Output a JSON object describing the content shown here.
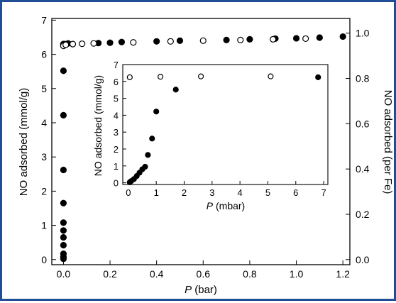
{
  "chart_data": [
    {
      "type": "scatter",
      "title": "",
      "xlabel": "P (bar)",
      "xlabel_var": "P",
      "xlabel_unit": "(bar)",
      "ylabel": "NO adsorbed (mmol/g)",
      "y2label": "NO adsorbed (per Fe)",
      "xlim": [
        -0.05,
        1.23
      ],
      "ylim": [
        -0.15,
        7.05
      ],
      "y2lim": [
        -0.0226,
        1.065
      ],
      "xticks": [
        "0.0",
        "0.2",
        "0.4",
        "0.6",
        "0.8",
        "1.0",
        "1.2"
      ],
      "yticks": [
        "0",
        "1",
        "2",
        "3",
        "4",
        "5",
        "6",
        "7"
      ],
      "y2ticks": [
        "0.0",
        "0.2",
        "0.4",
        "0.6",
        "0.8",
        "1.0"
      ],
      "series": [
        {
          "marker": "filled-circle",
          "color": "#000000",
          "x": [
            0.0,
            0.0,
            0.0,
            0.0,
            0.0,
            0.0,
            0.0,
            0.0,
            0.0,
            0.0,
            0.0,
            0.0,
            0.0,
            0.0,
            0.0,
            0.005,
            0.02,
            0.15,
            0.2,
            0.25,
            0.4,
            0.5,
            0.7,
            0.8,
            0.91,
            1.0,
            1.1,
            1.2
          ],
          "y": [
            0.02,
            0.08,
            0.17,
            0.42,
            0.65,
            0.85,
            1.08,
            1.65,
            2.62,
            4.22,
            5.52,
            6.25,
            6.28,
            6.3,
            6.3,
            6.3,
            6.32,
            6.33,
            6.34,
            6.36,
            6.38,
            6.4,
            6.42,
            6.44,
            6.46,
            6.47,
            6.49,
            6.52
          ]
        },
        {
          "marker": "open-circle",
          "color": "#000000",
          "x": [
            0.0,
            0.01,
            0.04,
            0.08,
            0.13,
            0.3,
            0.46,
            0.6,
            0.76,
            0.9,
            1.04
          ],
          "y": [
            6.25,
            6.28,
            6.3,
            6.31,
            6.32,
            6.35,
            6.38,
            6.4,
            6.42,
            6.44,
            6.46
          ]
        }
      ]
    },
    {
      "type": "scatter",
      "title": "",
      "xlabel": "P (mbar)",
      "xlabel_var": "P",
      "xlabel_unit": "(mbar)",
      "ylabel": "NO adsorbed (mmol/g)",
      "xlim": [
        -0.2,
        7.15
      ],
      "ylim": [
        -0.1,
        7.0
      ],
      "xticks": [
        "0",
        "1",
        "2",
        "3",
        "4",
        "5",
        "6",
        "7"
      ],
      "yticks": [
        "0",
        "1",
        "2",
        "3",
        "4",
        "5",
        "6",
        "7"
      ],
      "series": [
        {
          "marker": "filled-circle",
          "color": "#000000",
          "x": [
            0.05,
            0.1,
            0.2,
            0.3,
            0.4,
            0.5,
            0.6,
            0.7,
            0.85,
            1.0,
            1.7,
            6.8
          ],
          "y": [
            0.03,
            0.1,
            0.22,
            0.4,
            0.6,
            0.8,
            0.95,
            1.65,
            2.62,
            4.22,
            5.52,
            6.25
          ]
        },
        {
          "marker": "open-circle",
          "color": "#000000",
          "x": [
            0.05,
            1.15,
            2.6,
            5.1
          ],
          "y": [
            6.25,
            6.28,
            6.3,
            6.3
          ]
        }
      ]
    }
  ]
}
